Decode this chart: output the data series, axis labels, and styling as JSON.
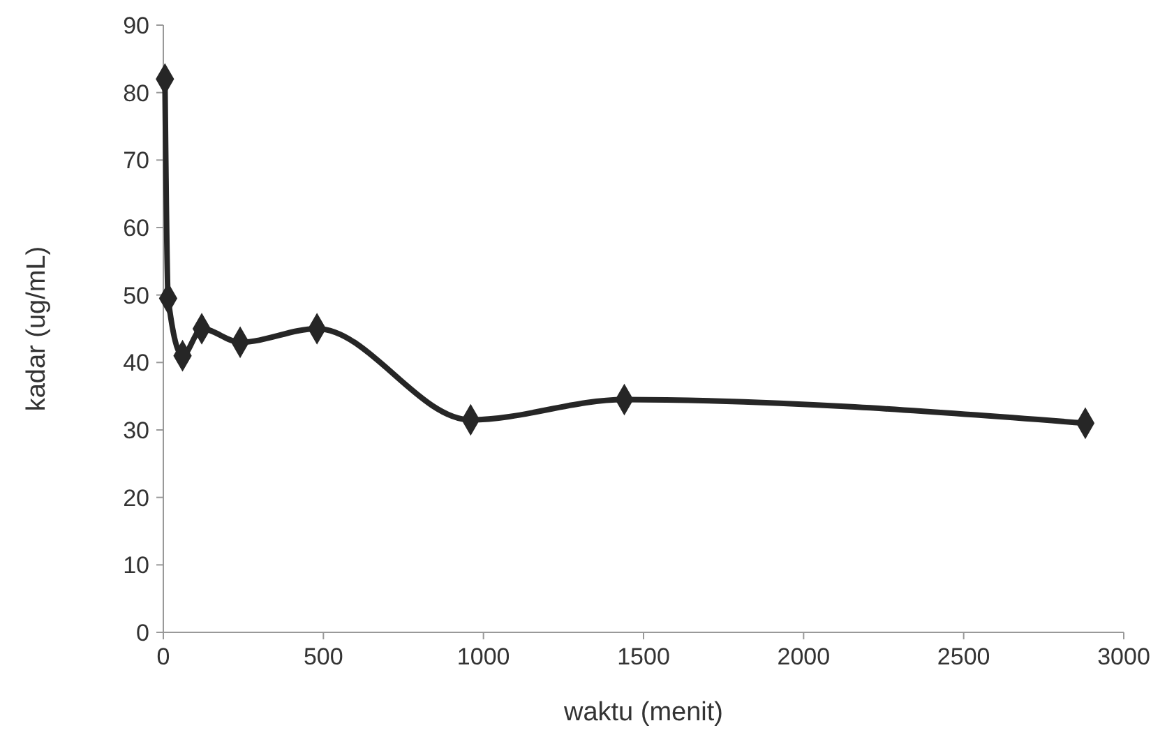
{
  "chart_data": {
    "type": "line",
    "xlabel": "waktu (menit)",
    "ylabel": "kadar (ug/mL)",
    "x": [
      5,
      15,
      60,
      120,
      240,
      480,
      960,
      1440,
      2880
    ],
    "series": [
      {
        "color": "#262626",
        "values": [
          82,
          49.5,
          41,
          45,
          43,
          45,
          31.5,
          34.5,
          31
        ]
      }
    ],
    "xlim": [
      0,
      3000
    ],
    "xticks": [
      0,
      500,
      1000,
      1500,
      2000,
      2500,
      3000
    ],
    "ylim": [
      0,
      90
    ],
    "yticks": [
      0,
      10,
      20,
      30,
      40,
      50,
      60,
      70,
      80,
      90
    ],
    "marker": "diamond",
    "line_style": "solid",
    "grid": false
  }
}
